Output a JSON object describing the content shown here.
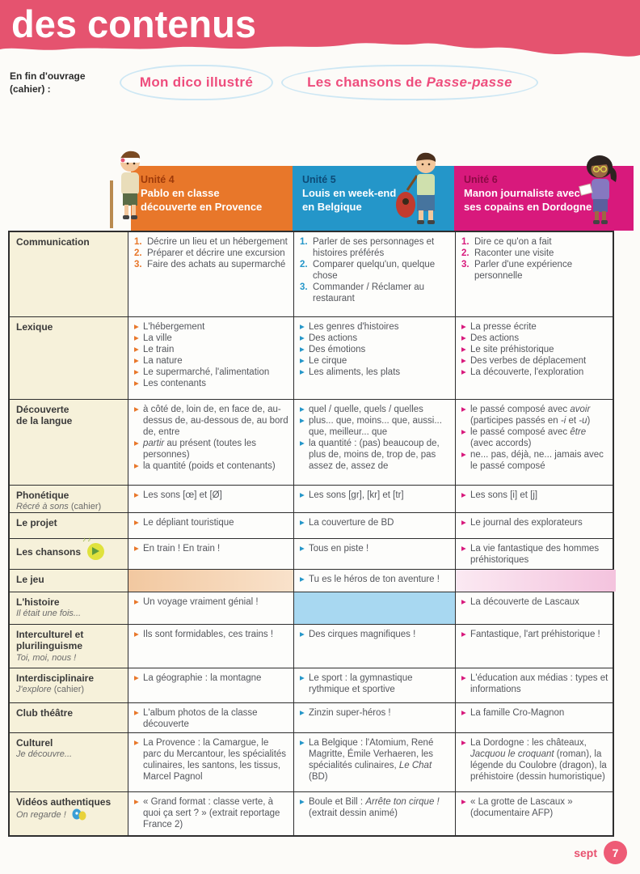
{
  "banner": {
    "title": "des contenus",
    "bg_color": "#e5536f"
  },
  "intro": {
    "label": "En fin d'ouvrage\n(cahier) :",
    "links": [
      "Mon dico illustré",
      "Les chansons de *Passe-passe*"
    ]
  },
  "units": [
    {
      "number": "Unité 4",
      "title": "Pablo en classe\ndécouverte en Provence",
      "color": "#e8772a",
      "number_color": "#9e3a0a",
      "character": "pablo-character"
    },
    {
      "number": "Unité 5",
      "title": "Louis en week-end\nen Belgique",
      "color": "#2496c9",
      "number_color": "#0d4b77",
      "character": "louis-character"
    },
    {
      "number": "Unité 6",
      "title": "Manon journaliste avec\nses copains en Dordogne",
      "color": "#d8197c",
      "number_color": "#8c0a45",
      "character": "manon-character"
    }
  ],
  "table": {
    "rows": [
      {
        "label": "Communication",
        "sub": null,
        "icon": null,
        "cells": [
          {
            "type": "numbered",
            "items": [
              "Décrire un lieu et un hébergement",
              "Préparer et décrire une excursion",
              "Faire des achats au supermarché"
            ]
          },
          {
            "type": "numbered",
            "items": [
              "Parler de ses personnages et histoires préférés",
              "Comparer quelqu'un, quelque chose",
              "Commander / Réclamer au restaurant"
            ]
          },
          {
            "type": "numbered",
            "items": [
              "Dire ce qu'on a fait",
              "Raconter une visite",
              "Parler d'une expérience personnelle"
            ]
          }
        ]
      },
      {
        "label": "Lexique",
        "sub": null,
        "icon": null,
        "cells": [
          {
            "type": "bullets",
            "items": [
              "L'hébergement",
              "La ville",
              "Le train",
              "La nature",
              "Le supermarché, l'alimentation",
              "Les contenants"
            ]
          },
          {
            "type": "bullets",
            "items": [
              "Les genres d'histoires",
              "Des actions",
              "Des émotions",
              "Le cirque",
              "Les aliments, les plats"
            ]
          },
          {
            "type": "bullets",
            "items": [
              "La presse écrite",
              "Des actions",
              "Le site préhistorique",
              "Des verbes de déplacement",
              "La découverte, l'exploration"
            ]
          }
        ]
      },
      {
        "label": "Découverte\nde la langue",
        "sub": null,
        "icon": null,
        "cells": [
          {
            "type": "bullets",
            "items": [
              "à côté de, loin de, en face de, au-dessus de, au-dessous de, au bord de, entre",
              "*partir* au présent (toutes les personnes)",
              "la quantité (poids et contenants)"
            ]
          },
          {
            "type": "bullets",
            "items": [
              "quel / quelle, quels / quelles",
              "plus... que, moins... que, aussi... que, meilleur... que",
              "la quantité : (pas) beaucoup de, plus de, moins de, trop de, pas assez de, assez de"
            ]
          },
          {
            "type": "bullets",
            "items": [
              "le passé composé avec *avoir* (participes passés en *-i* et *-u*)",
              "le passé composé avec *être* (avec accords)",
              "ne... pas, déjà, ne... jamais avec le passé composé"
            ]
          }
        ]
      },
      {
        "label": "Phonétique",
        "sub": "*Récré à sons* (cahier)",
        "icon": null,
        "cells": [
          {
            "type": "bullets",
            "items": [
              "Les sons [œ] et [Ø]"
            ]
          },
          {
            "type": "bullets",
            "items": [
              "Les sons [gr], [kr] et [tr]"
            ]
          },
          {
            "type": "bullets",
            "items": [
              "Les sons [i] et [j]"
            ]
          }
        ]
      },
      {
        "label": "Le projet",
        "sub": null,
        "icon": null,
        "cells": [
          {
            "type": "bullets",
            "items": [
              "Le dépliant touristique"
            ]
          },
          {
            "type": "bullets",
            "items": [
              "La couverture de BD"
            ]
          },
          {
            "type": "bullets",
            "items": [
              "Le journal des explorateurs"
            ]
          }
        ]
      },
      {
        "label": "Les chansons",
        "sub": null,
        "icon": "song-icon",
        "cells": [
          {
            "type": "bullets",
            "items": [
              "En train ! En train !"
            ]
          },
          {
            "type": "bullets",
            "items": [
              "Tous en piste !"
            ]
          },
          {
            "type": "bullets",
            "items": [
              "La vie fantastique des hommes préhistoriques"
            ]
          }
        ]
      },
      {
        "label": "Le jeu",
        "sub": null,
        "icon": null,
        "cells": [
          {
            "type": "empty",
            "bg": "linear-gradient(90deg,#f2c8a0,#f9e2cb)"
          },
          {
            "type": "bullets",
            "items": [
              "Tu es le héros de ton aventure !"
            ]
          },
          {
            "type": "empty",
            "bg": "linear-gradient(90deg,#fbe9f2,#f4c3de)"
          }
        ]
      },
      {
        "label": "L'histoire",
        "sub": "*Il était une fois...*",
        "icon": null,
        "cells": [
          {
            "type": "bullets",
            "items": [
              "Un voyage vraiment génial !"
            ]
          },
          {
            "type": "empty",
            "bg": "#a8d8f1"
          },
          {
            "type": "bullets",
            "items": [
              "La découverte de Lascaux"
            ]
          }
        ]
      },
      {
        "label": "Interculturel et\nplurilinguisme",
        "sub": "*Toi, moi, nous !*",
        "icon": null,
        "cells": [
          {
            "type": "bullets",
            "items": [
              "Ils sont formidables, ces trains !"
            ]
          },
          {
            "type": "bullets",
            "items": [
              "Des cirques magnifiques !"
            ]
          },
          {
            "type": "bullets",
            "items": [
              "Fantastique, l'art préhistorique !"
            ]
          }
        ]
      },
      {
        "label": "Interdisciplinaire",
        "sub": "*J'explore* (cahier)",
        "icon": null,
        "cells": [
          {
            "type": "bullets",
            "items": [
              "La géographie : la montagne"
            ]
          },
          {
            "type": "bullets",
            "items": [
              "Le sport : la gymnastique rythmique et sportive"
            ]
          },
          {
            "type": "bullets",
            "items": [
              "L'éducation aux médias : types et informations"
            ]
          }
        ]
      },
      {
        "label": "Club théâtre",
        "sub": null,
        "icon": null,
        "cells": [
          {
            "type": "bullets",
            "items": [
              "L'album photos de la classe découverte"
            ]
          },
          {
            "type": "bullets",
            "items": [
              "Zinzin super-héros !"
            ]
          },
          {
            "type": "bullets",
            "items": [
              "La famille Cro-Magnon"
            ]
          }
        ]
      },
      {
        "label": "Culturel",
        "sub": "*Je découvre...*",
        "icon": null,
        "cells": [
          {
            "type": "bullets",
            "items": [
              "La Provence : la Camargue, le parc du Mercantour, les spécialités culinaires, les santons, les tissus, Marcel Pagnol"
            ]
          },
          {
            "type": "bullets",
            "items": [
              "La Belgique : l'Atomium, René Magritte, Émile Verhaeren, les spécialités culinaires, *Le Chat* (BD)"
            ]
          },
          {
            "type": "bullets",
            "items": [
              "La Dordogne : les châteaux, *Jacquou le croquant* (roman), la légende du Coulobre (dragon), la préhistoire (dessin humoristique)"
            ]
          }
        ]
      },
      {
        "label": "Vidéos authentiques",
        "sub": "*On regarde !*",
        "icon": "watch-icon",
        "cells": [
          {
            "type": "bullets",
            "items": [
              "« Grand format : classe verte, à quoi ça sert ? » (extrait reportage France 2)"
            ]
          },
          {
            "type": "bullets",
            "items": [
              "Boule et Bill : *Arrête ton cirque !* (extrait dessin animé)"
            ]
          },
          {
            "type": "bullets",
            "items": [
              "« La grotte de Lascaux » (documentaire AFP)"
            ]
          }
        ]
      }
    ]
  },
  "footer": {
    "month": "sept",
    "page": "7"
  }
}
